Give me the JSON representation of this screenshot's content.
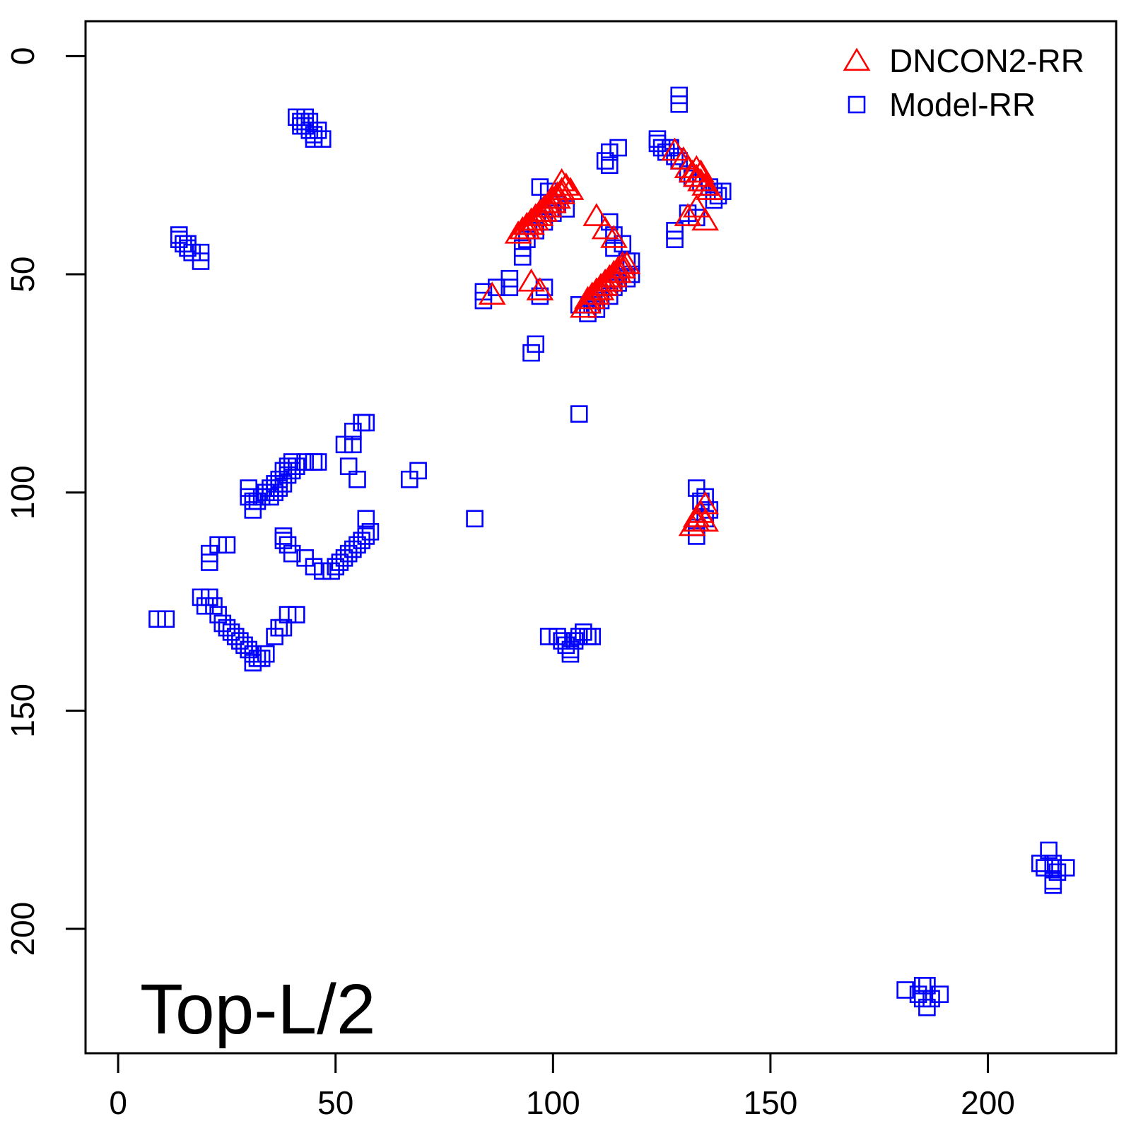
{
  "chart_data": {
    "type": "scatter",
    "title": "",
    "xlabel": "",
    "ylabel": "",
    "xlim": [
      -7.5,
      229.5
    ],
    "ylim": [
      228.5,
      -8
    ],
    "y_axis_inverted": true,
    "xticks": [
      0,
      50,
      100,
      150,
      200
    ],
    "yticks": [
      0,
      50,
      100,
      150,
      200
    ],
    "grid": false,
    "legend_position": "top-right",
    "annotation": "Top-L/2",
    "series": [
      {
        "name": "DNCON2-RR",
        "marker": "triangle",
        "color": "#ff0000",
        "points": [
          [
            86,
            55
          ],
          [
            95,
            52
          ],
          [
            97,
            54
          ],
          [
            110,
            37
          ],
          [
            112,
            40
          ],
          [
            114,
            42
          ],
          [
            92,
            41
          ],
          [
            93,
            40
          ],
          [
            94,
            40
          ],
          [
            94,
            39
          ],
          [
            95,
            39
          ],
          [
            95,
            38
          ],
          [
            96,
            38
          ],
          [
            96,
            37
          ],
          [
            97,
            37
          ],
          [
            97,
            36
          ],
          [
            98,
            36
          ],
          [
            98,
            35
          ],
          [
            99,
            35
          ],
          [
            99,
            34
          ],
          [
            100,
            34
          ],
          [
            100,
            33
          ],
          [
            101,
            33
          ],
          [
            101,
            32
          ],
          [
            102,
            32
          ],
          [
            102,
            31
          ],
          [
            103,
            30
          ],
          [
            102,
            29
          ],
          [
            104,
            31
          ],
          [
            107,
            58
          ],
          [
            108,
            57
          ],
          [
            108,
            56
          ],
          [
            109,
            56
          ],
          [
            109,
            55
          ],
          [
            110,
            55
          ],
          [
            110,
            54
          ],
          [
            111,
            54
          ],
          [
            111,
            53
          ],
          [
            112,
            53
          ],
          [
            112,
            52
          ],
          [
            113,
            52
          ],
          [
            113,
            51
          ],
          [
            114,
            51
          ],
          [
            114,
            50
          ],
          [
            115,
            50
          ],
          [
            115,
            49
          ],
          [
            116,
            49
          ],
          [
            116,
            48
          ],
          [
            117,
            48
          ],
          [
            128,
            22
          ],
          [
            130,
            24
          ],
          [
            131,
            26
          ],
          [
            132,
            27
          ],
          [
            133,
            28
          ],
          [
            134,
            29
          ],
          [
            135,
            30
          ],
          [
            136,
            31
          ],
          [
            133,
            26
          ],
          [
            134,
            27
          ],
          [
            131,
            37
          ],
          [
            133,
            35
          ],
          [
            135,
            38
          ],
          [
            132,
            108
          ],
          [
            133,
            107
          ],
          [
            133,
            106
          ],
          [
            134,
            105
          ],
          [
            135,
            103
          ],
          [
            135,
            107
          ]
        ]
      },
      {
        "name": "Model-RR",
        "marker": "square",
        "color": "#0000ff",
        "points": [
          [
            41,
            14
          ],
          [
            42,
            15
          ],
          [
            43,
            14
          ],
          [
            42,
            16
          ],
          [
            43,
            16
          ],
          [
            44,
            15
          ],
          [
            44,
            17
          ],
          [
            45,
            18
          ],
          [
            45,
            19
          ],
          [
            46,
            17
          ],
          [
            47,
            19
          ],
          [
            14,
            41
          ],
          [
            14,
            42
          ],
          [
            15,
            43
          ],
          [
            16,
            43
          ],
          [
            16,
            44
          ],
          [
            17,
            45
          ],
          [
            19,
            45
          ],
          [
            19,
            47
          ],
          [
            124,
            19
          ],
          [
            124,
            20
          ],
          [
            125,
            21
          ],
          [
            126,
            22
          ],
          [
            127,
            21
          ],
          [
            128,
            23
          ],
          [
            129,
            24
          ],
          [
            129,
            9
          ],
          [
            129,
            11
          ],
          [
            113,
            22
          ],
          [
            115,
            21
          ],
          [
            112,
            24
          ],
          [
            113,
            25
          ],
          [
            131,
            27
          ],
          [
            132,
            28
          ],
          [
            134,
            29
          ],
          [
            136,
            30
          ],
          [
            137,
            31
          ],
          [
            138,
            32
          ],
          [
            139,
            31
          ],
          [
            137,
            33
          ],
          [
            131,
            36
          ],
          [
            133,
            37
          ],
          [
            128,
            40
          ],
          [
            128,
            42
          ],
          [
            97,
            30
          ],
          [
            99,
            31
          ],
          [
            101,
            34
          ],
          [
            103,
            35
          ],
          [
            100,
            36
          ],
          [
            98,
            38
          ],
          [
            96,
            40
          ],
          [
            94,
            42
          ],
          [
            93,
            44
          ],
          [
            93,
            46
          ],
          [
            84,
            54
          ],
          [
            84,
            56
          ],
          [
            87,
            53
          ],
          [
            90,
            51
          ],
          [
            90,
            53
          ],
          [
            97,
            55
          ],
          [
            98,
            53
          ],
          [
            96,
            66
          ],
          [
            95,
            68
          ],
          [
            106,
            82
          ],
          [
            113,
            38
          ],
          [
            114,
            41
          ],
          [
            114,
            44
          ],
          [
            116,
            43
          ],
          [
            117,
            47
          ],
          [
            118,
            47
          ],
          [
            118,
            50
          ],
          [
            117,
            51
          ],
          [
            115,
            52
          ],
          [
            114,
            53
          ],
          [
            113,
            55
          ],
          [
            111,
            56
          ],
          [
            110,
            58
          ],
          [
            108,
            59
          ],
          [
            106,
            57
          ],
          [
            109,
            57
          ],
          [
            56,
            84
          ],
          [
            57,
            84
          ],
          [
            54,
            86
          ],
          [
            52,
            89
          ],
          [
            54,
            89
          ],
          [
            43,
            93
          ],
          [
            45,
            93
          ],
          [
            46,
            93
          ],
          [
            40,
            93
          ],
          [
            39,
            94
          ],
          [
            41,
            94
          ],
          [
            38,
            95
          ],
          [
            40,
            95
          ],
          [
            37,
            97
          ],
          [
            39,
            96
          ],
          [
            36,
            98
          ],
          [
            38,
            98
          ],
          [
            35,
            99
          ],
          [
            37,
            99
          ],
          [
            34,
            100
          ],
          [
            36,
            100
          ],
          [
            33,
            101
          ],
          [
            35,
            101
          ],
          [
            30,
            99
          ],
          [
            30,
            101
          ],
          [
            31,
            102
          ],
          [
            32,
            102
          ],
          [
            31,
            104
          ],
          [
            53,
            94
          ],
          [
            55,
            97
          ],
          [
            67,
            97
          ],
          [
            69,
            95
          ],
          [
            82,
            106
          ],
          [
            23,
            112
          ],
          [
            25,
            112
          ],
          [
            21,
            114
          ],
          [
            21,
            116
          ],
          [
            57,
            106
          ],
          [
            58,
            109
          ],
          [
            57,
            110
          ],
          [
            56,
            111
          ],
          [
            55,
            112
          ],
          [
            54,
            113
          ],
          [
            53,
            114
          ],
          [
            52,
            115
          ],
          [
            51,
            116
          ],
          [
            50,
            117
          ],
          [
            49,
            118
          ],
          [
            47,
            118
          ],
          [
            45,
            117
          ],
          [
            43,
            115
          ],
          [
            40,
            114
          ],
          [
            39,
            112
          ],
          [
            38,
            110
          ],
          [
            38,
            111
          ],
          [
            9,
            129
          ],
          [
            11,
            129
          ],
          [
            19,
            124
          ],
          [
            20,
            126
          ],
          [
            21,
            124
          ],
          [
            22,
            126
          ],
          [
            23,
            128
          ],
          [
            24,
            130
          ],
          [
            25,
            131
          ],
          [
            26,
            132
          ],
          [
            27,
            133
          ],
          [
            28,
            134
          ],
          [
            29,
            135
          ],
          [
            30,
            136
          ],
          [
            31,
            137
          ],
          [
            32,
            138
          ],
          [
            31,
            139
          ],
          [
            33,
            138
          ],
          [
            34,
            137
          ],
          [
            36,
            133
          ],
          [
            37,
            131
          ],
          [
            38,
            131
          ],
          [
            39,
            128
          ],
          [
            41,
            128
          ],
          [
            99,
            133
          ],
          [
            101,
            133
          ],
          [
            102,
            134
          ],
          [
            103,
            135
          ],
          [
            104,
            136
          ],
          [
            104,
            137
          ],
          [
            105,
            134
          ],
          [
            106,
            133
          ],
          [
            107,
            132
          ],
          [
            108,
            133
          ],
          [
            109,
            133
          ],
          [
            133,
            99
          ],
          [
            134,
            102
          ],
          [
            135,
            101
          ],
          [
            136,
            104
          ],
          [
            135,
            106
          ],
          [
            133,
            108
          ],
          [
            133,
            110
          ],
          [
            212,
            185
          ],
          [
            213,
            186
          ],
          [
            214,
            182
          ],
          [
            215,
            185
          ],
          [
            215,
            186
          ],
          [
            216,
            187
          ],
          [
            218,
            186
          ],
          [
            215,
            189
          ],
          [
            215,
            190
          ],
          [
            181,
            214
          ],
          [
            184,
            215
          ],
          [
            185,
            213
          ],
          [
            186,
            213
          ],
          [
            185,
            216
          ],
          [
            187,
            216
          ],
          [
            189,
            215
          ],
          [
            186,
            218
          ]
        ]
      }
    ]
  }
}
